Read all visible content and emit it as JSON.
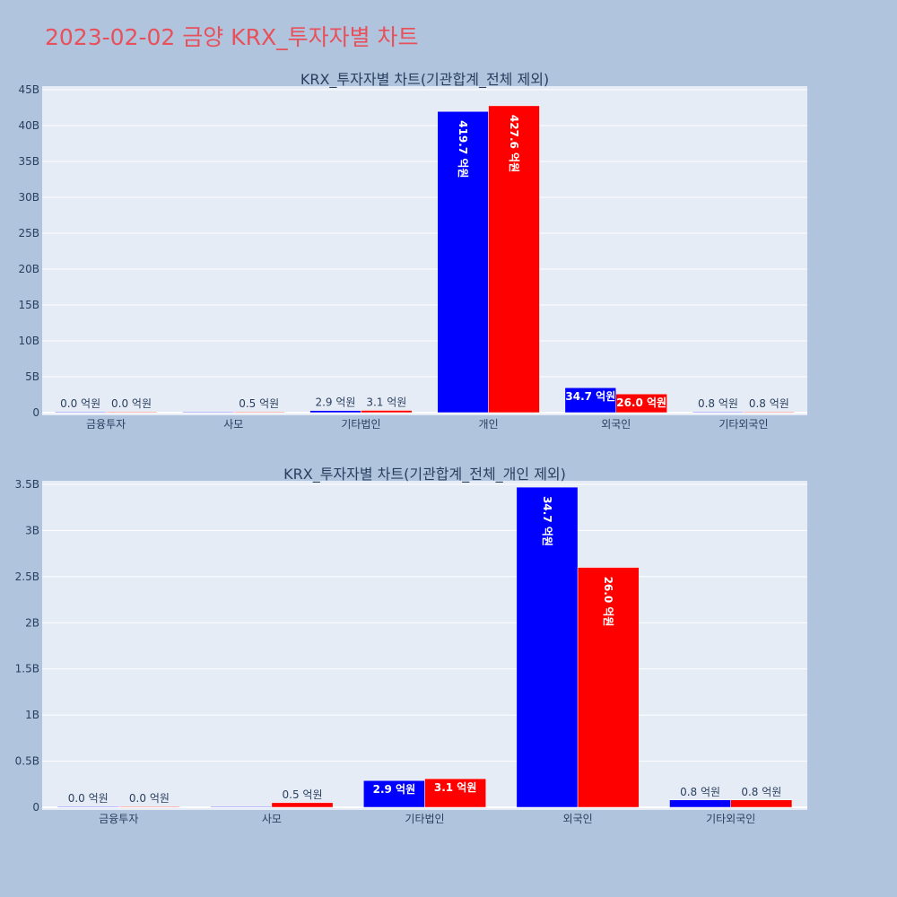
{
  "page_title": "2023-02-02 금양 KRX_투자자별 차트",
  "colors": {
    "background": "#b0c4de",
    "plot_bg": "#e5ecf6",
    "series_a": "#0000ff",
    "series_b": "#ff0000",
    "title": "#e8505b"
  },
  "chart_data": [
    {
      "type": "bar",
      "title": "KRX_투자자별 차트(기관합계_전체 제외)",
      "categories": [
        "금융투자",
        "사모",
        "기타법인",
        "개인",
        "외국인",
        "기타외국인"
      ],
      "ylim": [
        0,
        45
      ],
      "yticks": [
        0,
        5,
        10,
        15,
        20,
        25,
        30,
        35,
        40,
        45
      ],
      "ytick_labels": [
        "0",
        "5B",
        "10B",
        "15B",
        "20B",
        "25B",
        "30B",
        "35B",
        "40B",
        "45B"
      ],
      "grid": true,
      "series": [
        {
          "values": [
            0.0,
            0.0,
            0.29,
            41.97,
            3.47,
            0.08
          ],
          "labels": [
            "0.0 억원",
            "",
            "2.9 억원",
            "419.7 억원",
            "34.7 억원",
            "0.8 억원"
          ]
        },
        {
          "values": [
            0.0,
            0.05,
            0.31,
            42.76,
            2.6,
            0.08
          ],
          "labels": [
            "0.0 억원",
            "0.5 억원",
            "3.1 억원",
            "427.6 억원",
            "26.0 억원",
            "0.8 억원"
          ]
        }
      ]
    },
    {
      "type": "bar",
      "title": "KRX_투자자별 차트(기관합계_전체_개인 제외)",
      "categories": [
        "금융투자",
        "사모",
        "기타법인",
        "외국인",
        "기타외국인"
      ],
      "ylim": [
        0,
        3.5
      ],
      "yticks": [
        0,
        0.5,
        1,
        1.5,
        2,
        2.5,
        3,
        3.5
      ],
      "ytick_labels": [
        "0",
        "0.5B",
        "1B",
        "1.5B",
        "2B",
        "2.5B",
        "3B",
        "3.5B"
      ],
      "grid": true,
      "series": [
        {
          "values": [
            0.0,
            0.0,
            0.29,
            3.47,
            0.08
          ],
          "labels": [
            "0.0 억원",
            "",
            "2.9 억원",
            "34.7 억원",
            "0.8 억원"
          ]
        },
        {
          "values": [
            0.0,
            0.05,
            0.31,
            2.6,
            0.08
          ],
          "labels": [
            "0.0 억원",
            "0.5 억원",
            "3.1 억원",
            "26.0 억원",
            "0.8 억원"
          ]
        }
      ]
    }
  ]
}
